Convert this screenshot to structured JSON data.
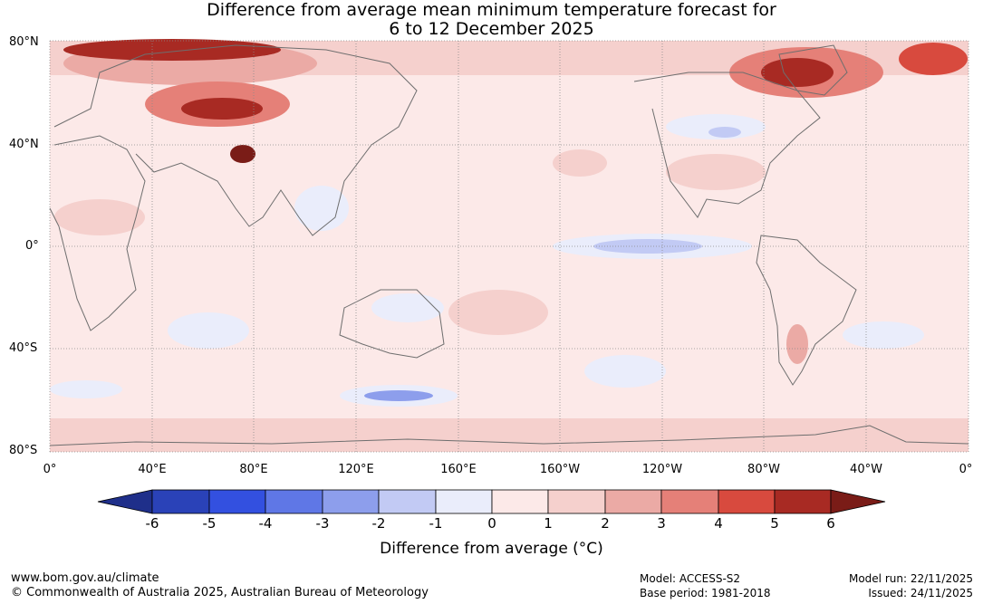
{
  "title": {
    "line1": "Difference from average mean minimum temperature forecast for",
    "line2": "6 to 12 December 2025"
  },
  "axes": {
    "lat_labels": [
      "80°N",
      "40°N",
      "0°",
      "40°S",
      "80°S"
    ],
    "lon_labels": [
      "0°",
      "40°E",
      "80°E",
      "120°E",
      "160°E",
      "160°W",
      "120°W",
      "80°W",
      "40°W",
      "0°"
    ]
  },
  "colorbar": {
    "title": "Difference from average (°C)",
    "ticks": [
      "-6",
      "-5",
      "-4",
      "-3",
      "-2",
      "-1",
      "0",
      "1",
      "2",
      "3",
      "4",
      "5",
      "6"
    ],
    "colors": [
      "#1f2f8a",
      "#2a42b8",
      "#3350e0",
      "#5f77e6",
      "#8d9eec",
      "#c2caf4",
      "#eaedfb",
      "#fce9e8",
      "#f5d0cd",
      "#ebaaa5",
      "#e58078",
      "#d84a3e",
      "#a82a23",
      "#7a1c17"
    ]
  },
  "map_colors": {
    "ocean_base": "#fce9e8",
    "land_line": "#6e6e6e",
    "grid": "#8a8a8a"
  },
  "footer": {
    "url": "www.bom.gov.au/climate",
    "copyright": "© Commonwealth of Australia 2025, Australian Bureau of Meteorology",
    "model": "Model: ACCESS-S2",
    "base_period": "Base period: 1981-2018",
    "model_run": "Model run: 22/11/2025",
    "issued": "Issued: 24/11/2025"
  }
}
